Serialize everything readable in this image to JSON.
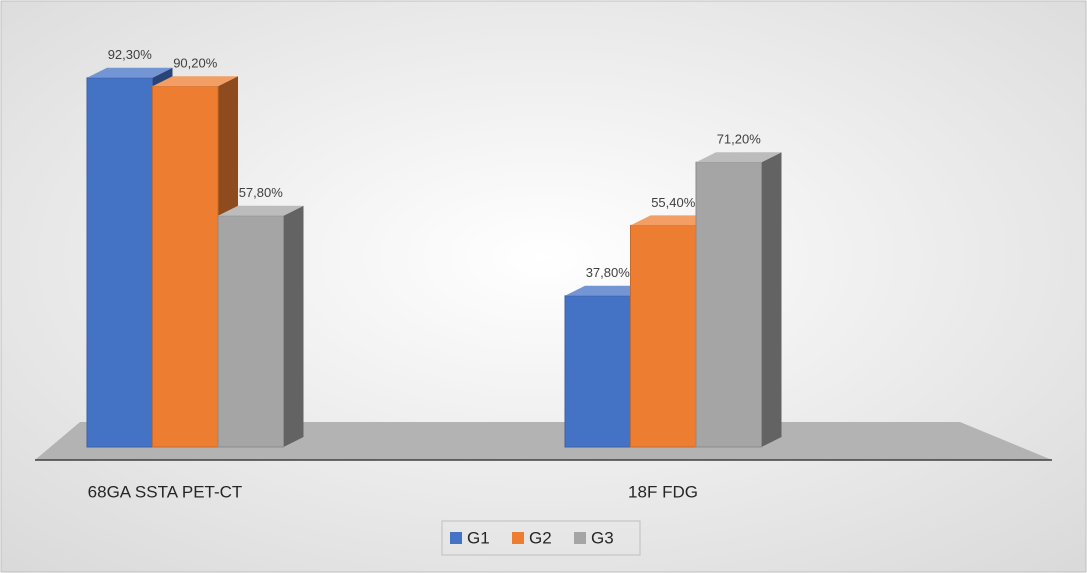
{
  "chart_data": {
    "type": "bar",
    "categories": [
      "68GA SSTA PET-CT",
      "18F FDG"
    ],
    "series": [
      {
        "name": "G1",
        "color": "#4472c4",
        "values": [
          92.3,
          37.8
        ],
        "value_labels": [
          "92,30%",
          "37,80%"
        ]
      },
      {
        "name": "G2",
        "color": "#ed7d31",
        "values": [
          90.2,
          55.4
        ],
        "value_labels": [
          "90,20%",
          "55,40%"
        ]
      },
      {
        "name": "G3",
        "color": "#a5a5a5",
        "values": [
          57.8,
          71.2
        ],
        "value_labels": [
          "57,80%",
          "71,20%"
        ]
      }
    ],
    "ylim": [
      0,
      100
    ],
    "legend": "bottom"
  }
}
